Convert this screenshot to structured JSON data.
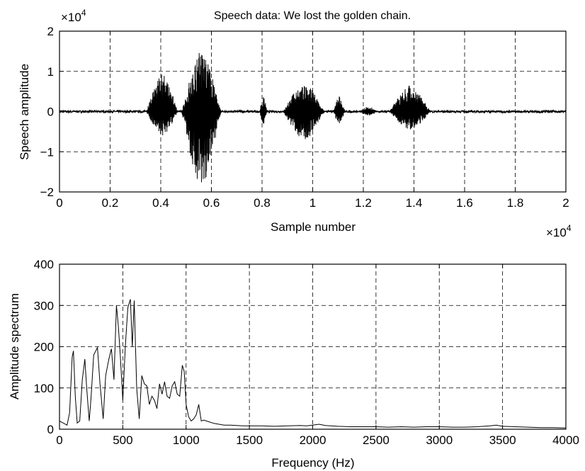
{
  "chart_data": [
    {
      "type": "line",
      "title": "Speech data: We lost the golden chain.",
      "xlabel": "Sample number",
      "ylabel": "Speech amplitude",
      "x_exponent_label": "×10",
      "x_exponent": "4",
      "y_exponent_label": "×10",
      "y_exponent": "4",
      "xlim": [
        0,
        2
      ],
      "ylim": [
        -2,
        2
      ],
      "xticks": [
        0,
        0.2,
        0.4,
        0.6,
        0.8,
        1,
        1.2,
        1.4,
        1.6,
        1.8,
        2
      ],
      "xtick_labels": [
        "0",
        "0.2",
        "0.4",
        "0.6",
        "0.8",
        "1",
        "1.2",
        "1.4",
        "1.6",
        "1.8",
        "2"
      ],
      "yticks": [
        -2,
        -1,
        0,
        1,
        2
      ],
      "ytick_labels": [
        "−2",
        "−1",
        "0",
        "1",
        "2"
      ],
      "grid": true,
      "series": [
        {
          "segments": [
            {
              "start": 0.34,
              "end": 0.47,
              "peak_pos": 0.95,
              "peak_neg": 0.6
            },
            {
              "start": 0.48,
              "end": 0.64,
              "peak_pos": 1.5,
              "peak_neg": 1.85
            },
            {
              "start": 0.79,
              "end": 0.82,
              "peak_pos": 0.38,
              "peak_neg": 0.35
            },
            {
              "start": 0.88,
              "end": 1.05,
              "peak_pos": 0.68,
              "peak_neg": 0.7
            },
            {
              "start": 1.08,
              "end": 1.13,
              "peak_pos": 0.38,
              "peak_neg": 0.3
            },
            {
              "start": 1.18,
              "end": 1.26,
              "peak_pos": 0.12,
              "peak_neg": 0.1
            },
            {
              "start": 1.3,
              "end": 1.47,
              "peak_pos": 0.65,
              "peak_neg": 0.45
            }
          ],
          "noise_amplitude": 0.03
        }
      ]
    },
    {
      "type": "line",
      "xlabel": "Frequency (Hz)",
      "ylabel": "Amplitude spectrum",
      "xlim": [
        0,
        4000
      ],
      "ylim": [
        0,
        400
      ],
      "xticks": [
        0,
        500,
        1000,
        1500,
        2000,
        2500,
        3000,
        3500,
        4000
      ],
      "xtick_labels": [
        "0",
        "500",
        "1000",
        "1500",
        "2000",
        "2500",
        "3000",
        "3500",
        "4000"
      ],
      "yticks": [
        0,
        100,
        200,
        300,
        400
      ],
      "ytick_labels": [
        "0",
        "100",
        "200",
        "300",
        "400"
      ],
      "grid": true,
      "series": [
        {
          "x": [
            0,
            30,
            60,
            80,
            100,
            110,
            125,
            140,
            160,
            180,
            200,
            215,
            235,
            250,
            270,
            300,
            320,
            345,
            365,
            390,
            410,
            430,
            450,
            465,
            480,
            500,
            520,
            540,
            560,
            575,
            590,
            610,
            630,
            650,
            670,
            690,
            710,
            730,
            750,
            770,
            790,
            810,
            830,
            850,
            870,
            890,
            910,
            930,
            950,
            970,
            985,
            1000,
            1020,
            1040,
            1060,
            1080,
            1100,
            1120,
            1140,
            1180,
            1220,
            1260,
            1300,
            1350,
            1400,
            1450,
            1500,
            1600,
            1700,
            1800,
            1900,
            1950,
            2000,
            2050,
            2100,
            2200,
            2300,
            2400,
            2500,
            2600,
            2700,
            2800,
            2900,
            3000,
            3100,
            3200,
            3300,
            3400,
            3450,
            3500,
            3600,
            3700,
            3800,
            3900,
            4000
          ],
          "y": [
            20,
            15,
            10,
            40,
            175,
            190,
            80,
            15,
            20,
            120,
            170,
            100,
            20,
            80,
            180,
            198,
            110,
            25,
            130,
            170,
            195,
            120,
            300,
            250,
            180,
            70,
            200,
            295,
            315,
            200,
            312,
            100,
            25,
            130,
            110,
            105,
            60,
            80,
            70,
            50,
            110,
            85,
            115,
            80,
            75,
            105,
            115,
            85,
            80,
            155,
            140,
            60,
            30,
            20,
            25,
            35,
            60,
            20,
            22,
            18,
            14,
            12,
            10,
            10,
            9,
            8,
            8,
            8,
            7,
            8,
            9,
            8,
            10,
            12,
            9,
            7,
            6,
            6,
            6,
            5,
            6,
            5,
            6,
            6,
            5,
            5,
            6,
            8,
            10,
            7,
            6,
            5,
            4,
            4,
            3
          ]
        }
      ]
    }
  ]
}
